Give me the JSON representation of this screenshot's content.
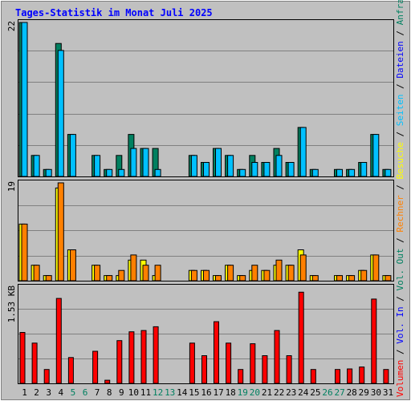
{
  "title": "Tages-Statistik im Monat Juli 2025",
  "colors": {
    "background": "#c0c0c0",
    "title": "#0000ff",
    "hits": "#008060",
    "files": "#00c0ff",
    "pages": "#00c0ff",
    "visits": "#ffff00",
    "sites": "#ff8000",
    "kbytes": "#ff0000",
    "weekday_label": "#000000",
    "weekend_label": "#008060",
    "kbytes_label": "#0000ff"
  },
  "right_label": [
    {
      "text": "Volumen",
      "color": "#ff0000"
    },
    {
      "text": " / ",
      "color": "#000000"
    },
    {
      "text": "Vol. In",
      "color": "#0000ff"
    },
    {
      "text": " / ",
      "color": "#000000"
    },
    {
      "text": "Vol. Out",
      "color": "#008060"
    },
    {
      "text": " / ",
      "color": "#000000"
    },
    {
      "text": "Rechner",
      "color": "#ff8000"
    },
    {
      "text": " / ",
      "color": "#000000"
    },
    {
      "text": "Besuche",
      "color": "#ffff00"
    },
    {
      "text": " / ",
      "color": "#000000"
    },
    {
      "text": "Seiten",
      "color": "#00c0ff"
    },
    {
      "text": " / ",
      "color": "#000000"
    },
    {
      "text": "Dateien",
      "color": "#0000ff"
    },
    {
      "text": " / ",
      "color": "#000000"
    },
    {
      "text": "Anfragen",
      "color": "#008060"
    }
  ],
  "chart_data": [
    {
      "type": "bar",
      "panel": "requests",
      "ymax_label": "22",
      "ylim": [
        0,
        22
      ],
      "categories": [
        "1",
        "2",
        "3",
        "4",
        "5",
        "6",
        "7",
        "8",
        "9",
        "10",
        "11",
        "12",
        "13",
        "14",
        "15",
        "16",
        "17",
        "18",
        "19",
        "20",
        "21",
        "22",
        "23",
        "24",
        "25",
        "26",
        "27",
        "28",
        "29",
        "30",
        "31"
      ],
      "weekend": [
        "5",
        "6",
        "12",
        "13",
        "19",
        "20",
        "26",
        "27"
      ],
      "series": [
        {
          "key": "hits",
          "values": [
            22,
            3,
            1,
            19,
            6,
            0,
            3,
            1,
            3,
            6,
            4,
            4,
            0,
            0,
            3,
            2,
            4,
            3,
            1,
            3,
            2,
            4,
            2,
            7,
            1,
            0,
            1,
            1,
            2,
            6,
            1
          ]
        },
        {
          "key": "files",
          "values": [
            22,
            3,
            1,
            18,
            6,
            0,
            3,
            1,
            1,
            4,
            4,
            1,
            0,
            0,
            3,
            2,
            4,
            3,
            1,
            2,
            2,
            3,
            2,
            7,
            1,
            0,
            1,
            1,
            2,
            6,
            1
          ]
        }
      ]
    },
    {
      "type": "bar",
      "panel": "visits",
      "ymax_label": "19",
      "ylim": [
        0,
        19
      ],
      "categories": [
        "1",
        "2",
        "3",
        "4",
        "5",
        "6",
        "7",
        "8",
        "9",
        "10",
        "11",
        "12",
        "13",
        "14",
        "15",
        "16",
        "17",
        "18",
        "19",
        "20",
        "21",
        "22",
        "23",
        "24",
        "25",
        "26",
        "27",
        "28",
        "29",
        "30",
        "31"
      ],
      "series": [
        {
          "key": "visits",
          "values": [
            11,
            3,
            1,
            18,
            6,
            0,
            3,
            1,
            1,
            4,
            4,
            1,
            0,
            0,
            2,
            2,
            1,
            3,
            1,
            2,
            2,
            3,
            3,
            6,
            1,
            0,
            1,
            1,
            2,
            5,
            1
          ]
        },
        {
          "key": "sites",
          "values": [
            11,
            3,
            1,
            19,
            6,
            0,
            3,
            1,
            2,
            5,
            3,
            3,
            0,
            0,
            2,
            2,
            1,
            3,
            1,
            3,
            2,
            4,
            3,
            5,
            1,
            0,
            1,
            1,
            2,
            5,
            1
          ]
        }
      ]
    },
    {
      "type": "bar",
      "panel": "kbytes",
      "ymax_label": "1.53 KB",
      "ylim": [
        0,
        1.53
      ],
      "categories": [
        "1",
        "2",
        "3",
        "4",
        "5",
        "6",
        "7",
        "8",
        "9",
        "10",
        "11",
        "12",
        "13",
        "14",
        "15",
        "16",
        "17",
        "18",
        "19",
        "20",
        "21",
        "22",
        "23",
        "24",
        "25",
        "26",
        "27",
        "28",
        "29",
        "30",
        "31"
      ],
      "series": [
        {
          "key": "kbytes",
          "values": [
            0.81,
            0.64,
            0.22,
            1.35,
            0.41,
            0,
            0.51,
            0.05,
            0.68,
            0.82,
            0.84,
            0.9,
            0,
            0,
            0.64,
            0.44,
            0.98,
            0.64,
            0.22,
            0.63,
            0.44,
            0.84,
            0.44,
            1.45,
            0.22,
            0,
            0.22,
            0.23,
            0.26,
            1.34,
            0.22
          ]
        }
      ]
    }
  ]
}
